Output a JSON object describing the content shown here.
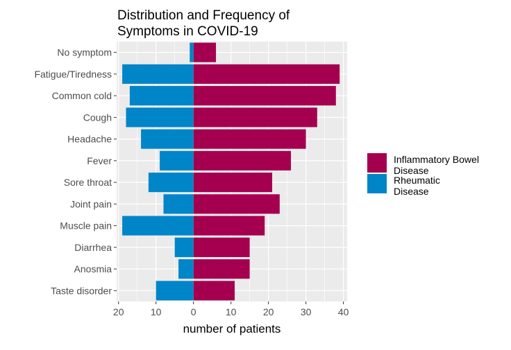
{
  "chart_data": {
    "type": "bar",
    "orientation": "horizontal",
    "layout": "diverging",
    "title_lines": [
      "Distribution and Frequency of",
      "Symptoms in COVID-19"
    ],
    "xlabel": "number of patients",
    "ylabel": "",
    "categories": [
      "No symptom",
      "Fatigue/Tiredness",
      "Common cold",
      "Cough",
      "Headache",
      "Fever",
      "Sore throat",
      "Joint pain",
      "Muscle pain",
      "Diarrhea",
      "Anosmia",
      "Taste disorder"
    ],
    "series": [
      {
        "name": "Inflammatory Bowel Disease",
        "legend_lines": [
          "Inflammatory Bowel",
          "Disease"
        ],
        "color": "#a50050",
        "values": [
          6,
          39,
          38,
          33,
          30,
          26,
          21,
          23,
          19,
          15,
          15,
          11
        ]
      },
      {
        "name": "Rheumatic Disease",
        "legend_lines": [
          "Rheumatic",
          "Disease"
        ],
        "color": "#0085c8",
        "values": [
          1,
          19,
          17,
          18,
          14,
          9,
          12,
          8,
          19,
          5,
          4,
          10
        ]
      }
    ],
    "xlim": [
      -20.5,
      41
    ],
    "xticks": [
      -20,
      -10,
      0,
      10,
      20,
      30,
      40
    ],
    "xtick_labels": [
      "20",
      "10",
      "0",
      "10",
      "20",
      "30",
      "40"
    ],
    "grid": true,
    "panel_background": "#ebebeb",
    "legend_position": "right"
  }
}
